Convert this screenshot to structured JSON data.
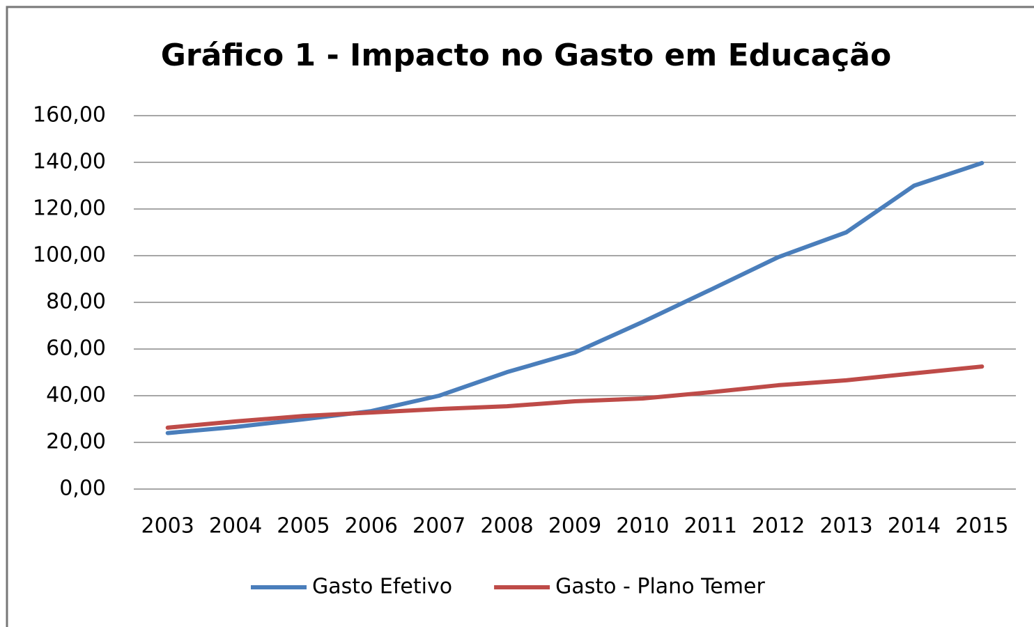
{
  "chart_data": {
    "type": "line",
    "title": "Gráfico 1 - Impacto no Gasto em Educação",
    "categories": [
      "2003",
      "2004",
      "2005",
      "2006",
      "2007",
      "2008",
      "2009",
      "2010",
      "2011",
      "2012",
      "2013",
      "2014",
      "2015"
    ],
    "series": [
      {
        "name": "Gasto Efetivo",
        "color": "#4a7ebb",
        "values": [
          24,
          26.6,
          29.9,
          33.4,
          40,
          50.1,
          58.5,
          71.6,
          85.4,
          99.4,
          110,
          130,
          139.7
        ]
      },
      {
        "name": "Gasto - Plano Temer",
        "color": "#be4b48",
        "values": [
          26.3,
          29,
          31.3,
          32.8,
          34.3,
          35.5,
          37.6,
          38.8,
          41.5,
          44.5,
          46.6,
          49.6,
          52.5
        ]
      }
    ],
    "ylim": [
      0,
      160
    ],
    "yticks": [
      {
        "value": 0,
        "label": "0,00"
      },
      {
        "value": 20,
        "label": "20,00"
      },
      {
        "value": 40,
        "label": "40,00"
      },
      {
        "value": 60,
        "label": "60,00"
      },
      {
        "value": 80,
        "label": "80,00"
      },
      {
        "value": 100,
        "label": "100,00"
      },
      {
        "value": 120,
        "label": "120,00"
      },
      {
        "value": 140,
        "label": "140,00"
      },
      {
        "value": 160,
        "label": "160,00"
      }
    ],
    "grid": true,
    "legend": "bottom"
  }
}
